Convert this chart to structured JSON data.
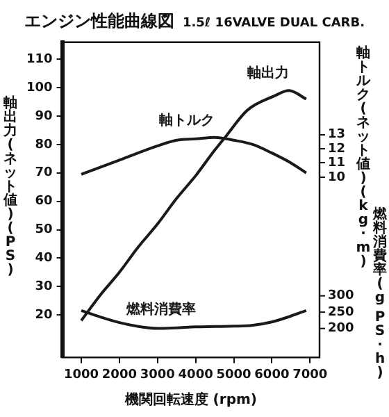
{
  "chart_data": {
    "type": "line",
    "title": "エンジン性能曲線図",
    "subtitle": "1.5ℓ 16VALVE DUAL CARB.",
    "xlabel": "機関回転速度 (rpm)",
    "ylabel": "軸出力(ネット値)(PS)",
    "y2label": "軸トルク(ネット値)(kg·m)",
    "y3label": "燃料消費率(g PS·h)",
    "xlim": [
      500,
      7250
    ],
    "xticks": [
      1000,
      2000,
      3000,
      4000,
      5000,
      6000,
      7000
    ],
    "ylim": [
      5,
      116
    ],
    "yticks": [
      20,
      30,
      40,
      50,
      60,
      70,
      80,
      90,
      100,
      110
    ],
    "y2lim": [
      -2.7,
      19.5
    ],
    "y2ticks": [
      10,
      11,
      12,
      13
    ],
    "y3lim": [
      111,
      1077
    ],
    "y3ticks": [
      200,
      250,
      300
    ],
    "grid": false,
    "legend": false,
    "marker": "none",
    "line_style": "solid",
    "series": [
      {
        "name": "軸出力",
        "color": "#1a1a1a",
        "x": [
          1000,
          1500,
          2000,
          2500,
          3000,
          3500,
          4000,
          4500,
          4800,
          5350,
          6050,
          6450,
          6900
        ],
        "values": [
          18,
          27,
          35,
          44,
          52,
          61,
          69,
          78,
          83,
          92,
          97,
          99,
          96
        ]
      },
      {
        "name": "軸トルク",
        "axis": "y2",
        "color": "#1a1a1a",
        "x": [
          1000,
          2000,
          3000,
          3500,
          4000,
          4500,
          5000,
          5500,
          6000,
          6500,
          6900
        ],
        "values": [
          10.2,
          11.2,
          12.2,
          12.6,
          12.7,
          12.8,
          12.6,
          12.3,
          11.7,
          11.0,
          10.3
        ]
      },
      {
        "name": "燃料消費率",
        "axis": "y3",
        "color": "#1a1a1a",
        "x": [
          1000,
          1500,
          2000,
          2500,
          3000,
          3500,
          4000,
          4500,
          5000,
          5500,
          6000,
          6500,
          6900
        ],
        "values": [
          255,
          235,
          218,
          206,
          200,
          202,
          205,
          206,
          207,
          210,
          220,
          238,
          255
        ]
      }
    ]
  }
}
